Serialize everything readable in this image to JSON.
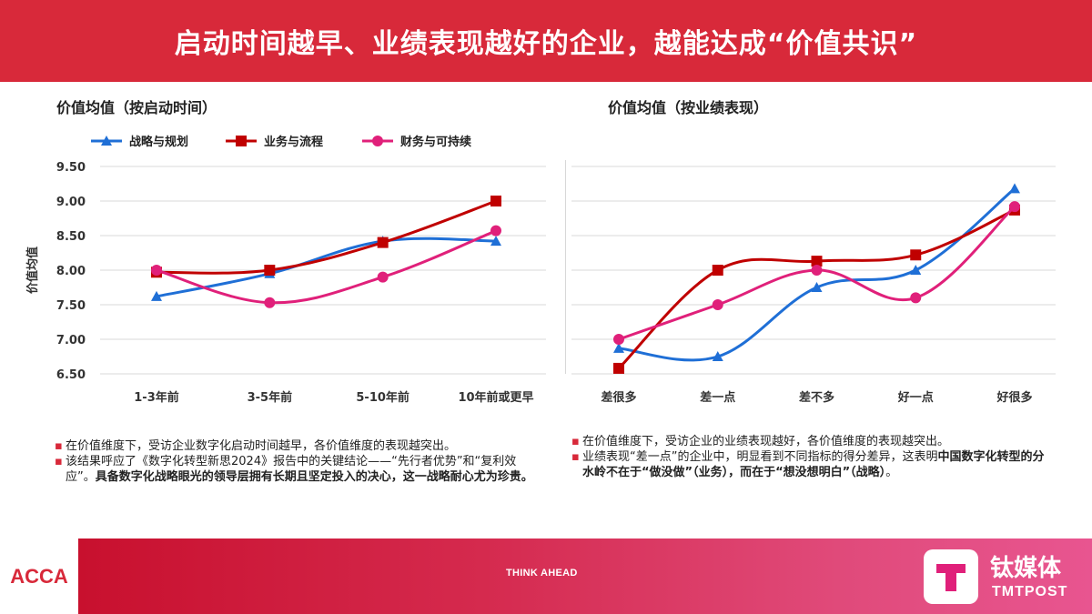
{
  "header": {
    "title": "启动时间越早、业绩表现越好的企业，越能达成“价值共识”"
  },
  "colors": {
    "brand_red": "#d8293a",
    "series_blue": "#1f6fd6",
    "series_red": "#c00000",
    "series_pink": "#e0207a"
  },
  "chart_data": [
    {
      "type": "line",
      "title": "价值均值（按启动时间）",
      "xlabel": "",
      "ylabel": "价值均值",
      "categories": [
        "1-3年前",
        "3-5年前",
        "5-10年前",
        "10年前或更早"
      ],
      "ylim": [
        6.5,
        9.5
      ],
      "yticks": [
        "9.50",
        "9.00",
        "8.50",
        "8.00",
        "7.50",
        "7.00",
        "6.50"
      ],
      "grid": true,
      "legend": "top",
      "series": [
        {
          "name": "战略与规划",
          "color": "#1f6fd6",
          "marker": "triangle",
          "values": [
            7.62,
            7.95,
            8.42,
            8.42
          ]
        },
        {
          "name": "业务与流程",
          "color": "#c00000",
          "marker": "square",
          "values": [
            7.97,
            8.0,
            8.4,
            9.0
          ]
        },
        {
          "name": "财务与可持续",
          "color": "#e0207a",
          "marker": "circle",
          "values": [
            8.0,
            7.53,
            7.9,
            8.57
          ]
        }
      ]
    },
    {
      "type": "line",
      "title": "价值均值（按业绩表现）",
      "xlabel": "",
      "ylabel": "",
      "categories": [
        "差很多",
        "差一点",
        "差不多",
        "好一点",
        "好很多"
      ],
      "ylim": [
        6.5,
        9.5
      ],
      "grid": true,
      "legend": "none",
      "series": [
        {
          "name": "战略与规划",
          "color": "#1f6fd6",
          "marker": "triangle",
          "values": [
            6.87,
            6.75,
            7.75,
            8.0,
            9.18
          ]
        },
        {
          "name": "业务与流程",
          "color": "#c00000",
          "marker": "square",
          "values": [
            6.58,
            8.0,
            8.13,
            8.22,
            8.87
          ]
        },
        {
          "name": "财务与可持续",
          "color": "#e0207a",
          "marker": "circle",
          "values": [
            7.0,
            7.5,
            8.0,
            7.6,
            8.92
          ]
        }
      ]
    }
  ],
  "notes_left": [
    {
      "text": "在价值维度下，受访企业数字化启动时间越早，各价值维度的表现越突出。",
      "bold": ""
    },
    {
      "text": "该结果呼应了《数字化转型新思2024》报告中的关键结论——“先行者优势”和“复利效应”。",
      "bold": "具备数字化战略眼光的领导层拥有长期且坚定投入的决心，这一战略耐心尤为珍贵。"
    }
  ],
  "notes_right": [
    {
      "text": "在价值维度下，受访企业的业绩表现越好，各价值维度的表现越突出。",
      "pre": "",
      "bold": "",
      "post": ""
    },
    {
      "text": "",
      "pre": "业绩表现“差一点”的企业中，明显看到不同指标的得分差异，这表明",
      "bold": "中国数字化转型的分水岭不在于“做没做”（业务），而在于“想没想明白”（战略）",
      "post": "。"
    }
  ],
  "footer": {
    "acca": "ACCA",
    "tagline": "THINK AHEAD",
    "tmt_cn": "钛媒体",
    "tmt_en": "TMTPOST"
  }
}
